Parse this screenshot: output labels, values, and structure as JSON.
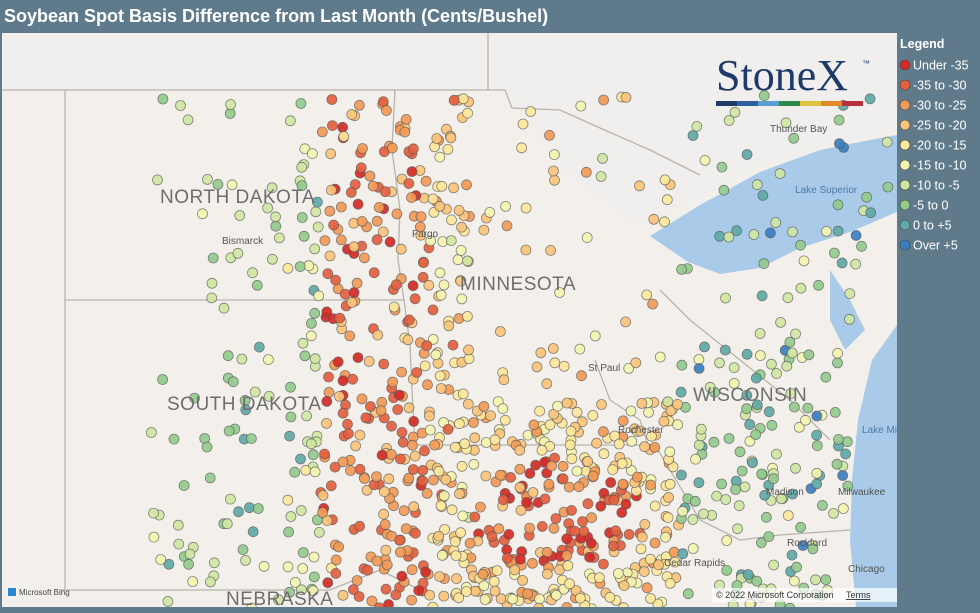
{
  "title": "Soybean Spot Basis Difference from Last Month (Cents/Bushel)",
  "logo": {
    "name": "StoneX",
    "mark": "™"
  },
  "legend": {
    "title": "Legend",
    "items": [
      {
        "label": "Under -35",
        "color": "#d42a25"
      },
      {
        "label": "-35 to -30",
        "color": "#e5603e"
      },
      {
        "label": "-30 to -25",
        "color": "#f29a56"
      },
      {
        "label": "-25 to -20",
        "color": "#fbc47a"
      },
      {
        "label": "-20 to -15",
        "color": "#fde79a"
      },
      {
        "label": "-15 to -10",
        "color": "#f4f4b0"
      },
      {
        "label": "-10 to -5",
        "color": "#cfe6a2"
      },
      {
        "label": "-5 to 0",
        "color": "#93cb8c"
      },
      {
        "label": "0 to +5",
        "color": "#5fa9a6"
      },
      {
        "label": "Over +5",
        "color": "#3b7fc0"
      }
    ]
  },
  "states": [
    "NORTH DAKOTA",
    "MINNESOTA",
    "SOUTH DAKOTA",
    "WISCONSIN",
    "NEBRASKA"
  ],
  "cities": [
    "Bismarck",
    "Fargo",
    "St Paul",
    "Rochester",
    "Thunder Bay",
    "Milwaukee",
    "Madison",
    "Rockford",
    "Chicago",
    "Cedar Rapids"
  ],
  "water": [
    "Lake Superior",
    "Lake Michigan"
  ],
  "attribution": {
    "bing": "Microsoft Bing",
    "copyright": "© 2022 Microsoft Corporation",
    "terms": "Terms"
  }
}
